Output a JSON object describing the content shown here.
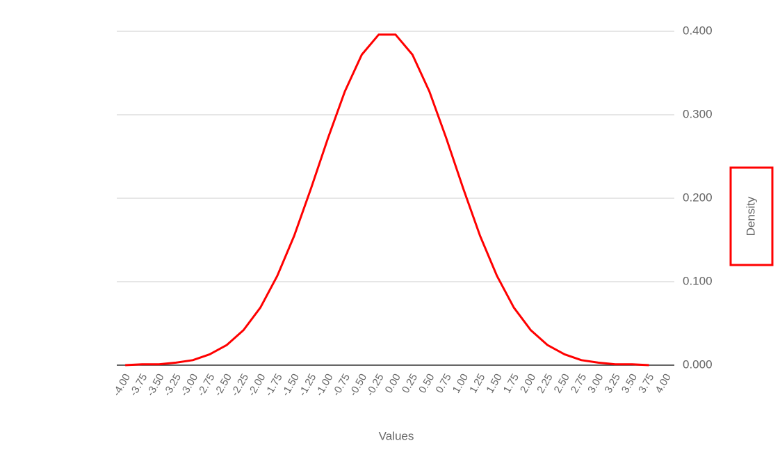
{
  "chart_data": {
    "type": "line",
    "categories": [
      "-4.00",
      "-3.75",
      "-3.50",
      "-3.25",
      "-3.00",
      "-2.75",
      "-2.50",
      "-2.25",
      "-2.00",
      "-1.75",
      "-1.50",
      "-1.25",
      "-1.00",
      "-0.75",
      "-0.50",
      "-0.25",
      "0.00",
      "0.25",
      "0.50",
      "0.75",
      "1.00",
      "1.25",
      "1.50",
      "1.75",
      "2.00",
      "2.25",
      "2.50",
      "2.75",
      "3.00",
      "3.25",
      "3.50",
      "3.75",
      "4.00"
    ],
    "series": [
      {
        "color": "#ff0000",
        "values": [
          0.0,
          0.001,
          0.001,
          0.003,
          0.006,
          0.013,
          0.024,
          0.042,
          0.069,
          0.107,
          0.155,
          0.212,
          0.272,
          0.328,
          0.372,
          0.396,
          0.396,
          0.372,
          0.328,
          0.272,
          0.212,
          0.155,
          0.107,
          0.069,
          0.042,
          0.024,
          0.013,
          0.006,
          0.003,
          0.001,
          0.001,
          0.0,
          null
        ]
      }
    ],
    "x_label": "Values",
    "y_label": "Density",
    "y_axis_side": "right",
    "ylim": [
      0,
      0.4
    ],
    "yticks": [
      {
        "value": 0,
        "label": "0.000"
      },
      {
        "value": 0.1,
        "label": "0.100"
      },
      {
        "value": 0.2,
        "label": "0.200"
      },
      {
        "value": 0.3,
        "label": "0.300"
      },
      {
        "value": 0.4,
        "label": "0.400"
      }
    ],
    "grid": true
  }
}
